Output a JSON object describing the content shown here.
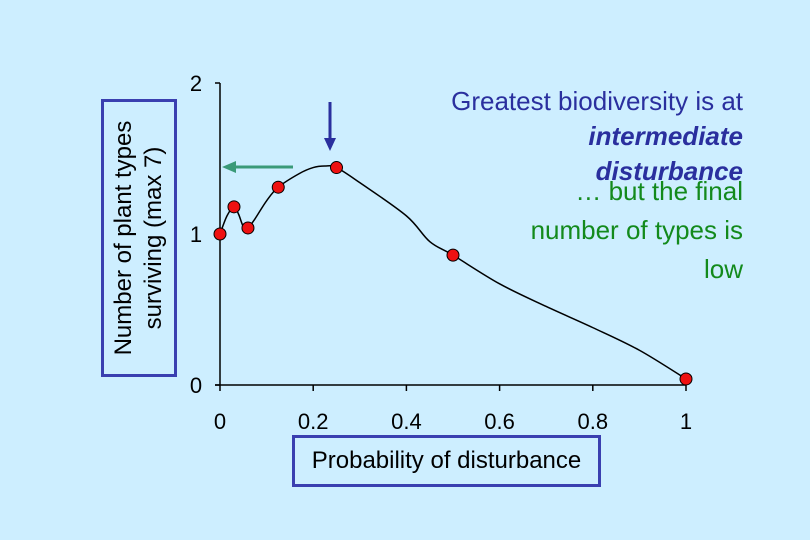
{
  "chart_data": {
    "type": "line",
    "xlabel": "Probability of disturbance",
    "ylabel": "Number of plant types surviving (max 7)",
    "xlim": [
      0,
      1
    ],
    "ylim": [
      0,
      2
    ],
    "x_ticks": [
      "0",
      "0.2",
      "0.4",
      "0.6",
      "0.8",
      "1"
    ],
    "y_ticks": [
      "0",
      "1",
      "2"
    ],
    "curve": [
      {
        "x": 0.0,
        "y": 1.0
      },
      {
        "x": 0.015,
        "y": 1.12
      },
      {
        "x": 0.03,
        "y": 1.18
      },
      {
        "x": 0.04,
        "y": 1.13
      },
      {
        "x": 0.05,
        "y": 1.05
      },
      {
        "x": 0.06,
        "y": 1.04
      },
      {
        "x": 0.075,
        "y": 1.1
      },
      {
        "x": 0.1,
        "y": 1.22
      },
      {
        "x": 0.125,
        "y": 1.31
      },
      {
        "x": 0.17,
        "y": 1.4
      },
      {
        "x": 0.2,
        "y": 1.44
      },
      {
        "x": 0.225,
        "y": 1.45
      },
      {
        "x": 0.25,
        "y": 1.44
      },
      {
        "x": 0.3,
        "y": 1.34
      },
      {
        "x": 0.4,
        "y": 1.12
      },
      {
        "x": 0.45,
        "y": 0.95
      },
      {
        "x": 0.5,
        "y": 0.86
      },
      {
        "x": 0.6,
        "y": 0.67
      },
      {
        "x": 0.7,
        "y": 0.52
      },
      {
        "x": 0.8,
        "y": 0.38
      },
      {
        "x": 0.9,
        "y": 0.23
      },
      {
        "x": 1.0,
        "y": 0.04
      }
    ],
    "points": [
      {
        "x": 0.0,
        "y": 1.0
      },
      {
        "x": 0.03,
        "y": 1.18
      },
      {
        "x": 0.06,
        "y": 1.04
      },
      {
        "x": 0.125,
        "y": 1.31
      },
      {
        "x": 0.25,
        "y": 1.44
      },
      {
        "x": 0.5,
        "y": 0.86
      },
      {
        "x": 1.0,
        "y": 0.04
      }
    ],
    "marker_color": "#ee1111",
    "line_color": "#000000"
  },
  "annotations": {
    "line1": "Greatest biodiversity is at",
    "line2": "intermediate",
    "line3": "disturbance",
    "green_line1": "… but the final",
    "green_line2": "number of types is",
    "green_line3": "low",
    "blue_color": "#2a2f9e",
    "green_color": "#138a1c"
  }
}
